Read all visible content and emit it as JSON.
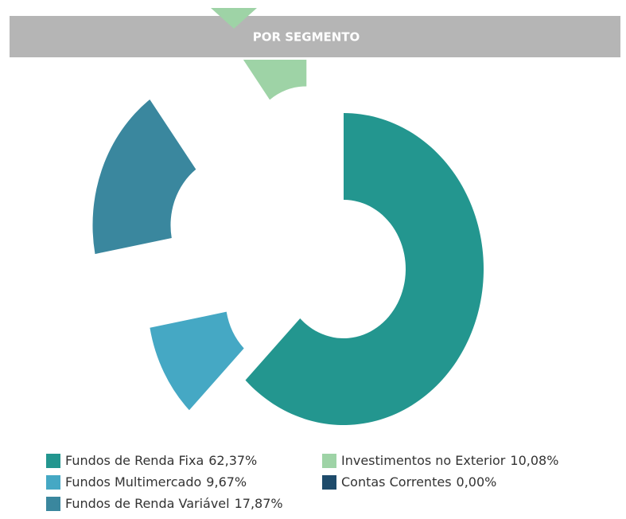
{
  "header": {
    "title": "POR SEGMENTO"
  },
  "chart_data": {
    "type": "donut",
    "categories": [
      "Fundos de Renda Fixa",
      "Fundos Multimercado",
      "Fundos de Renda Variável",
      "Investimentos no Exterior",
      "Contas Correntes"
    ],
    "values": [
      62.37,
      9.67,
      17.87,
      10.08,
      0
    ],
    "value_labels": [
      "62,37%",
      "9,67%",
      "17,87%",
      "10,08%",
      "0,00%"
    ],
    "colors": [
      "#23968f",
      "#45a8c4",
      "#3a879e",
      "#9ed3a6",
      "#1e4b6b"
    ]
  }
}
